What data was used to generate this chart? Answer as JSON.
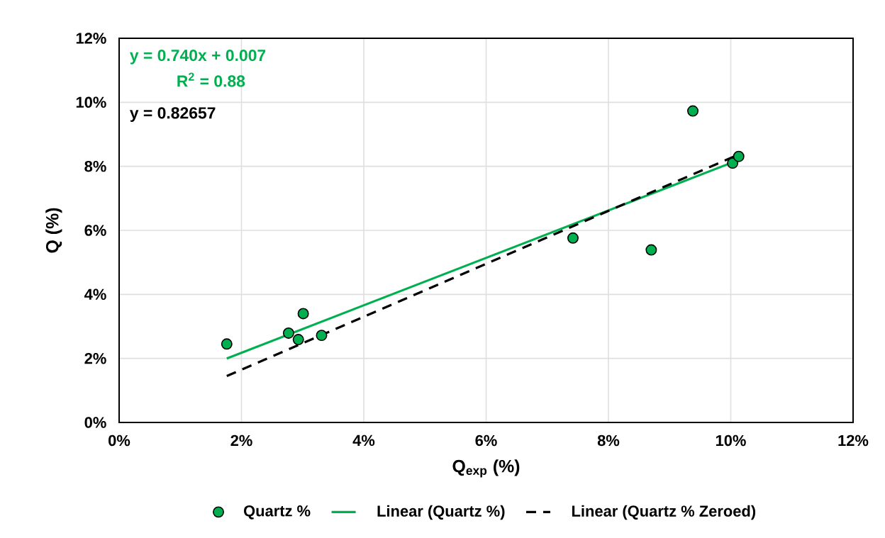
{
  "chart_data": {
    "type": "scatter",
    "xlabel": "Q$_{exp}$ (%)",
    "ylabel": "Q (%)",
    "xlim": [
      0,
      12
    ],
    "ylim": [
      0,
      12
    ],
    "xticks": [
      {
        "value": 0,
        "label": "0%"
      },
      {
        "value": 2,
        "label": "2%"
      },
      {
        "value": 4,
        "label": "4%"
      },
      {
        "value": 6,
        "label": "6%"
      },
      {
        "value": 8,
        "label": "8%"
      },
      {
        "value": 10,
        "label": "10%"
      },
      {
        "value": 12,
        "label": "12%"
      }
    ],
    "yticks": [
      {
        "value": 0,
        "label": "0%"
      },
      {
        "value": 2,
        "label": "2%"
      },
      {
        "value": 4,
        "label": "4%"
      },
      {
        "value": 6,
        "label": "6%"
      },
      {
        "value": 8,
        "label": "8%"
      },
      {
        "value": 10,
        "label": "10%"
      },
      {
        "value": 12,
        "label": "12%"
      }
    ],
    "grid": true,
    "legend": "bottom",
    "series": [
      {
        "name": "Quartz %",
        "marker": "circle",
        "color": "#00b050",
        "x": [
          1.76,
          2.77,
          2.93,
          3.01,
          3.31,
          7.42,
          8.7,
          9.38,
          10.03,
          10.13
        ],
        "values": [
          2.45,
          2.79,
          2.59,
          3.4,
          2.72,
          5.76,
          5.39,
          9.73,
          8.1,
          8.31
        ]
      },
      {
        "name": "Linear (Quartz %)",
        "type": "line",
        "color": "#00b050",
        "line_style": "solid",
        "x": [
          1.76,
          10.13
        ],
        "values": [
          2.0,
          8.2
        ]
      },
      {
        "name": "Linear (Quartz % Zeroed)",
        "type": "line",
        "color": "#000000",
        "line_style": "dashed",
        "x": [
          1.76,
          10.13
        ],
        "values": [
          1.45,
          8.37
        ]
      }
    ],
    "annotations": [
      "y = 0.740x + 0.007",
      "R$^{2}$ = 0.88",
      "y = 0.82657"
    ]
  }
}
